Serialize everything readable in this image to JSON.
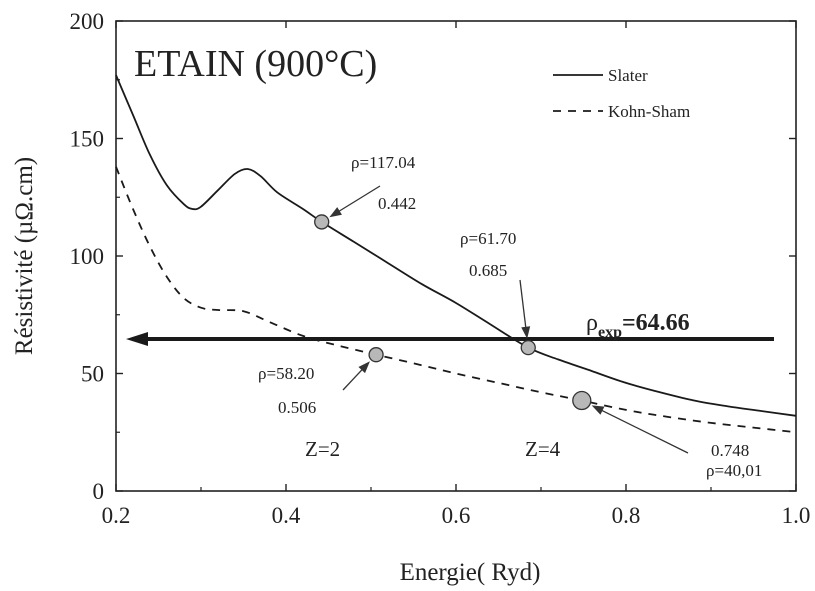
{
  "chart_data": {
    "type": "line",
    "title": "ETAIN (900°C)",
    "xlabel": "Energie( Ryd)",
    "ylabel": "Résistivité (µΩ.cm)",
    "xlim": [
      0.2,
      1.0
    ],
    "ylim": [
      0,
      200
    ],
    "xticks": [
      "0.2",
      "0.4",
      "0.6",
      "0.8",
      "1.0"
    ],
    "yticks": [
      "0",
      "50",
      "100",
      "150",
      "200"
    ],
    "legend_position": "top-right",
    "series": [
      {
        "name": "Slater",
        "style": "solid",
        "x": [
          0.2,
          0.22,
          0.24,
          0.26,
          0.28,
          0.29,
          0.3,
          0.32,
          0.34,
          0.355,
          0.37,
          0.39,
          0.42,
          0.442,
          0.48,
          0.52,
          0.56,
          0.6,
          0.64,
          0.685,
          0.72,
          0.76,
          0.8,
          0.84,
          0.88,
          0.92,
          0.96,
          1.0
        ],
        "y": [
          177,
          160,
          143,
          130,
          122,
          120,
          121,
          128,
          135,
          137,
          134,
          127,
          120,
          114.5,
          106,
          97,
          88,
          80,
          71,
          61,
          56,
          51,
          46,
          42,
          38.5,
          36,
          34,
          32
        ]
      },
      {
        "name": "Kohn-Sham",
        "style": "dashed",
        "x": [
          0.2,
          0.22,
          0.24,
          0.26,
          0.28,
          0.3,
          0.32,
          0.35,
          0.38,
          0.42,
          0.46,
          0.506,
          0.56,
          0.6,
          0.65,
          0.7,
          0.748,
          0.8,
          0.85,
          0.9,
          0.95,
          1.0
        ],
        "y": [
          138,
          120,
          104,
          91,
          82,
          78,
          77,
          76.5,
          72,
          66,
          62,
          58,
          53.5,
          50,
          46,
          42,
          38.5,
          34.5,
          31.5,
          29,
          27,
          25
        ]
      }
    ],
    "reference_line": {
      "label": "ρ",
      "subscript": "exp",
      "value_text": "=64.66",
      "y": 64.66,
      "x_from": 1.0,
      "x_to": 0.2
    },
    "annotations": [
      {
        "rho": "ρ=117.04",
        "energy": "0.442",
        "x": 0.442,
        "y": 114.5
      },
      {
        "rho": "ρ=61.70",
        "energy": "0.685",
        "x": 0.685,
        "y": 61
      },
      {
        "rho": "ρ=58.20",
        "energy": "0.506",
        "x": 0.506,
        "y": 58
      },
      {
        "rho": "ρ=40,01",
        "energy": "0.748",
        "x": 0.748,
        "y": 38.5
      }
    ],
    "z_labels": [
      {
        "text": "Z=2",
        "x": 0.48,
        "y": 15
      },
      {
        "text": "Z=4",
        "x": 0.68,
        "y": 15
      }
    ],
    "colors": {
      "lines": "#1a1a1a",
      "marker_fill": "#b8b8b8",
      "marker_stroke": "#333333"
    }
  }
}
